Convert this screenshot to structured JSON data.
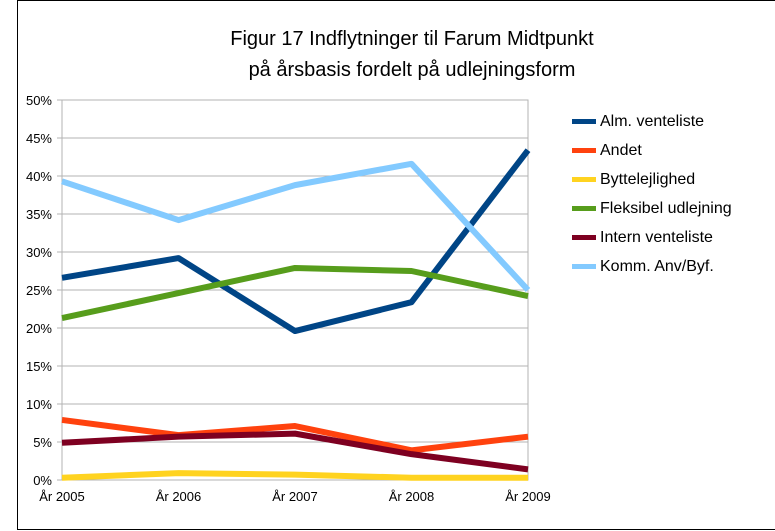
{
  "chart_data": {
    "type": "line",
    "title": [
      "Figur 17 Indflytninger til Farum Midtpunkt",
      "på årsbasis fordelt på udlejningsform"
    ],
    "categories": [
      "År 2005",
      "År 2006",
      "År 2007",
      "År 2008",
      "År 2009"
    ],
    "series": [
      {
        "name": "Alm. venteliste",
        "color": "#004586",
        "values": [
          26.6,
          29.2,
          19.6,
          23.4,
          43.4
        ]
      },
      {
        "name": "Andet",
        "color": "#ff420e",
        "values": [
          7.9,
          5.9,
          7.1,
          3.9,
          5.7
        ]
      },
      {
        "name": "Byttelejlighed",
        "color": "#ffd320",
        "values": [
          0.3,
          0.9,
          0.7,
          0.3,
          0.3
        ]
      },
      {
        "name": "Fleksibel udlejning",
        "color": "#579d1c",
        "values": [
          21.3,
          24.6,
          27.9,
          27.5,
          24.2
        ]
      },
      {
        "name": "Intern venteliste",
        "color": "#7e0021",
        "values": [
          4.9,
          5.7,
          6.1,
          3.4,
          1.4
        ]
      },
      {
        "name": "Komm. Anv/Byf.",
        "color": "#83caff",
        "values": [
          39.3,
          34.2,
          38.8,
          41.6,
          25
        ]
      }
    ],
    "ylim": [
      0,
      50
    ],
    "yticks": [
      {
        "value": 0,
        "label": "0%"
      },
      {
        "value": 5,
        "label": "5%"
      },
      {
        "value": 10,
        "label": "10%"
      },
      {
        "value": 15,
        "label": "15%"
      },
      {
        "value": 20,
        "label": "20%"
      },
      {
        "value": 25,
        "label": "25%"
      },
      {
        "value": 30,
        "label": "30%"
      },
      {
        "value": 35,
        "label": "35%"
      },
      {
        "value": 40,
        "label": "40%"
      },
      {
        "value": 45,
        "label": "45%"
      },
      {
        "value": 50,
        "label": "50%"
      }
    ],
    "grid": true
  }
}
